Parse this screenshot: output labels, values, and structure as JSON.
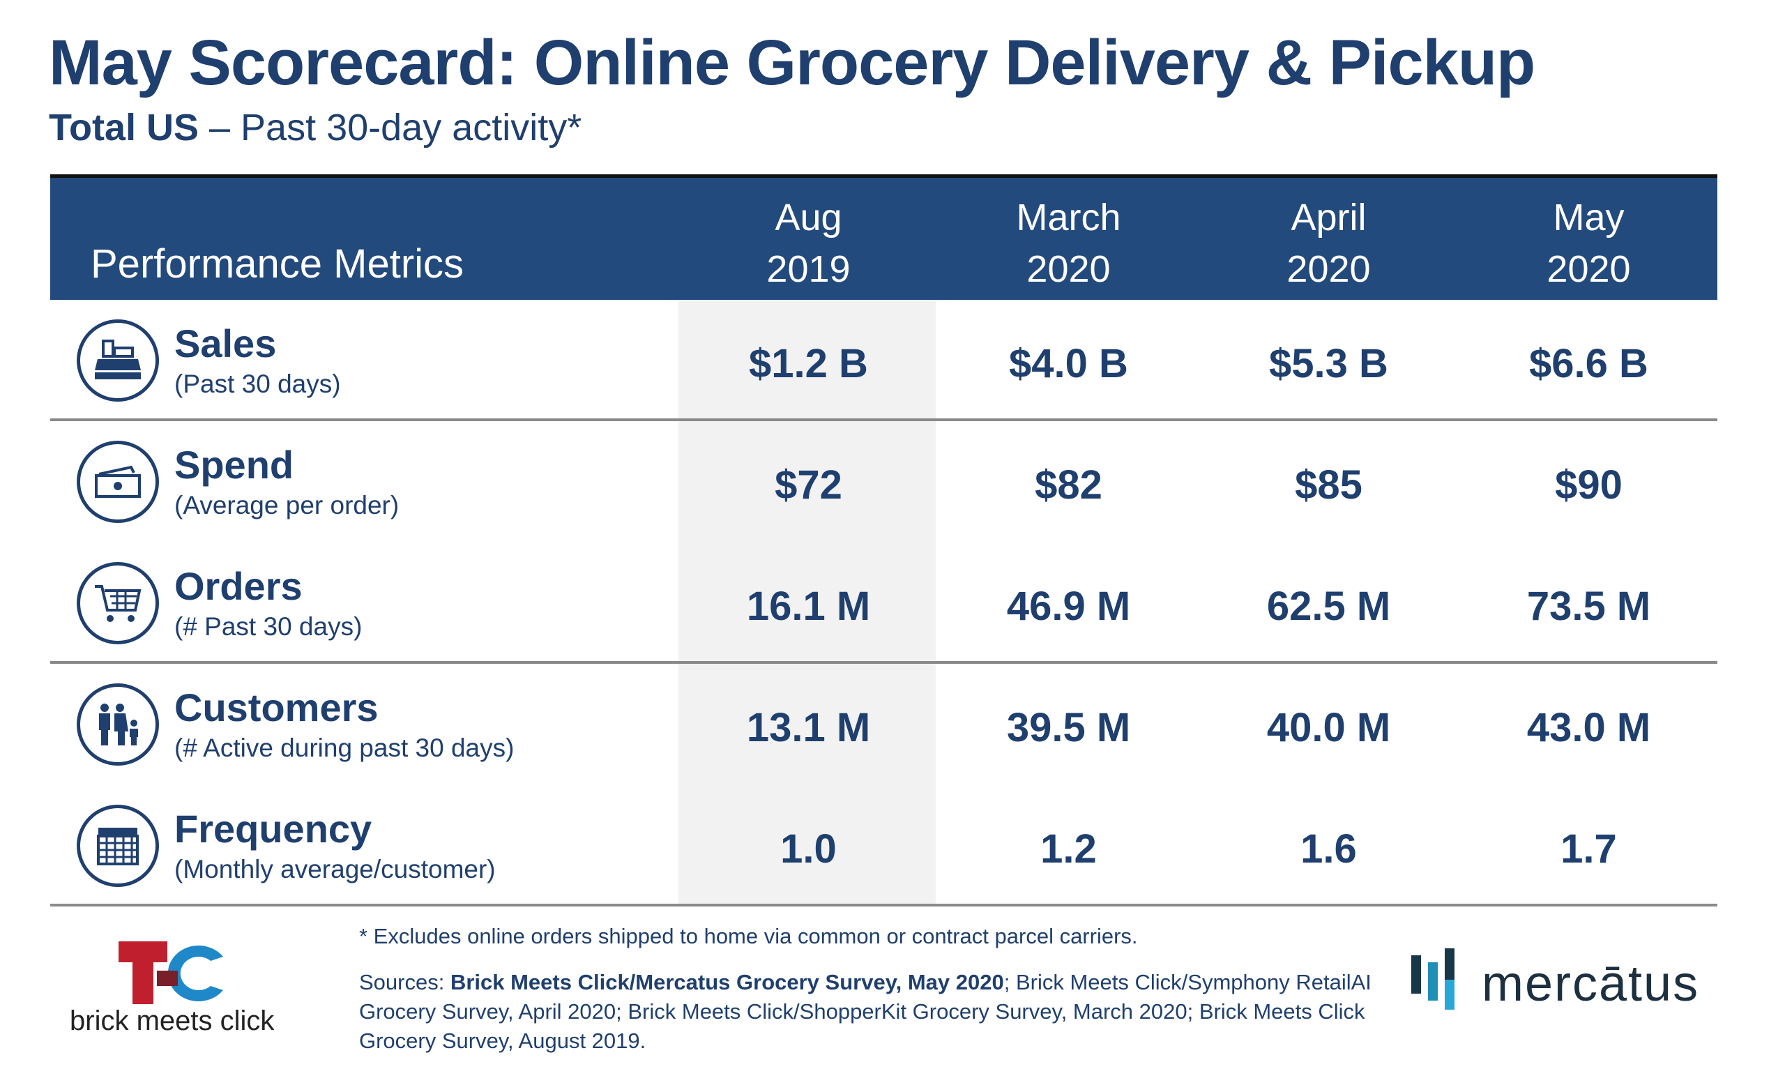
{
  "title": "May Scorecard: Online Grocery Delivery & Pickup",
  "subtitle": {
    "bold": "Total US",
    "rest": " – Past 30-day activity*"
  },
  "header": {
    "label": "Performance Metrics",
    "columns": [
      [
        "Aug",
        "2019"
      ],
      [
        "March",
        "2020"
      ],
      [
        "April",
        "2020"
      ],
      [
        "May",
        "2020"
      ]
    ]
  },
  "rows": [
    {
      "name": "Sales",
      "sub": "(Past 30 days)",
      "icon": "cash-register-icon",
      "values": [
        "$1.2 B",
        "$4.0 B",
        "$5.3 B",
        "$6.6 B"
      ]
    },
    {
      "name": "Spend",
      "sub": "(Average per order)",
      "icon": "money-icon",
      "values": [
        "$72",
        "$82",
        "$85",
        "$90"
      ]
    },
    {
      "name": "Orders",
      "sub": "(# Past 30 days)",
      "icon": "cart-icon",
      "values": [
        "16.1 M",
        "46.9 M",
        "62.5 M",
        "73.5 M"
      ]
    },
    {
      "name": "Customers",
      "sub": "(# Active during past 30 days)",
      "icon": "family-icon",
      "values": [
        "13.1 M",
        "39.5 M",
        "40.0 M",
        "43.0 M"
      ]
    },
    {
      "name": "Frequency",
      "sub": "(Monthly average/customer)",
      "icon": "calendar-icon",
      "values": [
        "1.0",
        "1.2",
        "1.6",
        "1.7"
      ]
    }
  ],
  "footer": {
    "note": "* Excludes online orders shipped to home via common or contract parcel carriers.",
    "sources_label": "Sources: ",
    "sources_bold": "Brick Meets Click/Mercatus Grocery Survey, May 2020",
    "sources_rest": ";  Brick Meets Click/Symphony RetailAI Grocery Survey, April 2020; Brick Meets Click/ShopperKit Grocery Survey, March 2020; Brick Meets Click Grocery Survey, August 2019."
  },
  "logos": {
    "left": "brick meets click",
    "right": "mercātus"
  },
  "colors": {
    "header": "#234a7c",
    "text": "#1f3f6e",
    "gray_col": "#f2f2f2"
  }
}
